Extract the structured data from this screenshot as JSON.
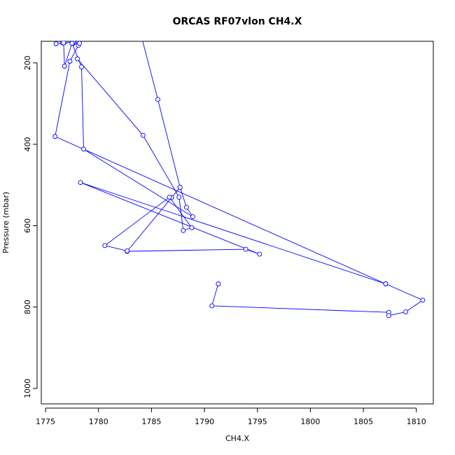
{
  "chart_data": {
    "type": "line",
    "title": "ORCAS RF07vlon CH4.X",
    "xlabel": "CH4.X",
    "ylabel": "Pressure (mbar)",
    "xlim": [
      1774.6,
      1811.6
    ],
    "ylim": [
      1038,
      147
    ],
    "y_reversed": true,
    "x_ticks": [
      1775,
      1780,
      1785,
      1790,
      1795,
      1800,
      1805,
      1810
    ],
    "y_ticks": [
      200,
      400,
      600,
      800,
      1000
    ],
    "grid": false,
    "marker": "open-circle",
    "series": [
      {
        "color": "#0000ff",
        "points": [
          [
            1791.3,
            743
          ],
          [
            1790.7,
            797
          ],
          [
            1807.4,
            813
          ],
          [
            1807.4,
            821
          ],
          [
            1809.0,
            812
          ],
          [
            1810.6,
            783
          ],
          [
            1807.1,
            743
          ],
          [
            1775.9,
            381
          ],
          [
            1777.3,
            196
          ],
          [
            1778.1,
            157
          ],
          [
            1778.2,
            152
          ],
          [
            1777.6,
            150
          ],
          [
            1777.5,
            151
          ],
          [
            1777.6,
            152
          ],
          [
            1777.5,
            152
          ],
          [
            1777.7,
            150
          ],
          [
            1777.6,
            150
          ],
          [
            1776.8,
            150
          ],
          [
            1776.6,
            151
          ],
          [
            1776.0,
            153
          ],
          [
            1776.7,
            151
          ],
          [
            1776.8,
            208
          ],
          [
            1777.5,
            152
          ],
          [
            1778.4,
            210
          ],
          [
            1778.6,
            412
          ],
          [
            1788.9,
            578
          ],
          [
            1788.3,
            555
          ],
          [
            1787.7,
            506
          ],
          [
            1786.9,
            531
          ],
          [
            1782.7,
            663
          ],
          [
            1793.9,
            658
          ],
          [
            1795.2,
            670
          ],
          [
            1778.3,
            494
          ],
          [
            1807.1,
            743
          ]
        ]
      },
      {
        "color": "#0000ff",
        "points": [
          [
            1778.0,
            190
          ],
          [
            1784.2,
            378
          ],
          [
            1787.6,
            530
          ],
          [
            1788.0,
            612
          ],
          [
            1788.8,
            605
          ],
          [
            1786.7,
            530
          ],
          [
            1780.6,
            649
          ],
          [
            1782.7,
            662
          ]
        ]
      },
      {
        "color": "#0000ff",
        "points": [
          [
            1784.0,
            130
          ],
          [
            1785.6,
            290
          ],
          [
            1787.7,
            506
          ]
        ]
      }
    ]
  }
}
